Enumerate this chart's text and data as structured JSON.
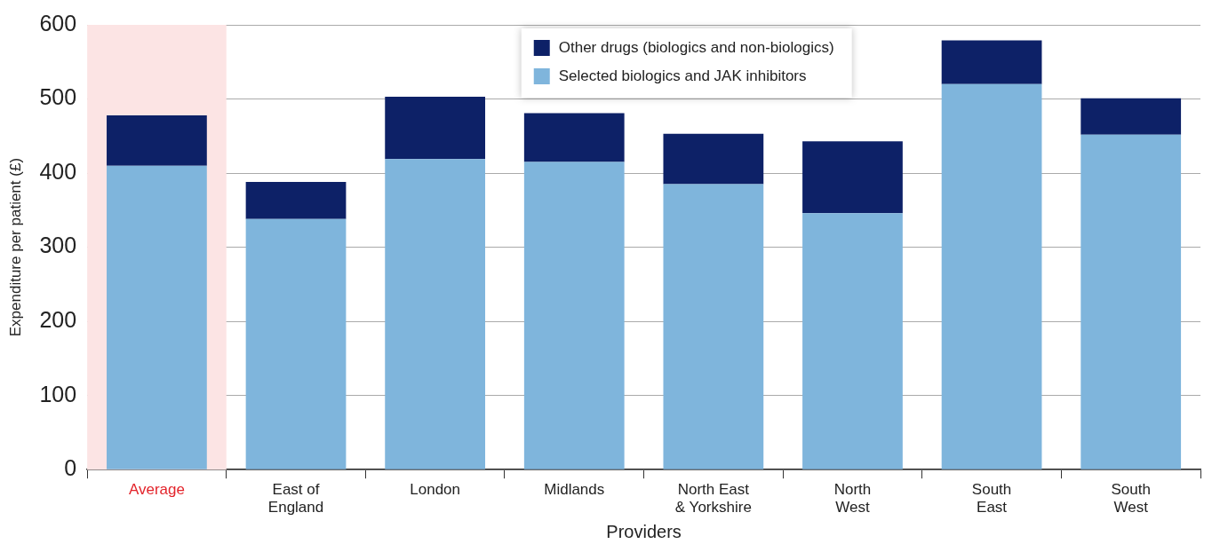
{
  "chart_data": {
    "type": "bar",
    "stacked": true,
    "xlabel": "Providers",
    "ylabel": "Expenditure per patient (£)",
    "categories": [
      "Average",
      "East of England",
      "London",
      "Midlands",
      "North East & Yorkshire",
      "North West",
      "South East",
      "South West"
    ],
    "series": [
      {
        "name": "Selected biologics and JAK inhibitors",
        "color": "#7fb5dc",
        "values": [
          410,
          338,
          419,
          415,
          385,
          346,
          520,
          452
        ]
      },
      {
        "name": "Other drugs (biologics and non-biologics)",
        "color": "#0d2167",
        "values": [
          68,
          50,
          84,
          66,
          68,
          97,
          59,
          49
        ]
      }
    ],
    "ylim": [
      0,
      600
    ],
    "yticks": [
      0,
      100,
      200,
      300,
      400,
      500,
      600
    ],
    "grid": "y",
    "legend": "top",
    "bands": [
      {
        "axis": "x",
        "from": "Average",
        "to": "Average",
        "color": "#fce4e4"
      }
    ]
  }
}
